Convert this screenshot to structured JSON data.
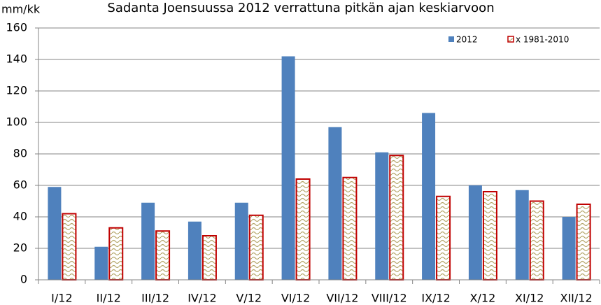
{
  "chart_data": {
    "type": "bar",
    "title": "Sadanta  Joensuussa 2012 verrattuna pitkän ajan keskiarvoon",
    "y_label": "mm/kk",
    "categories": [
      "I/12",
      "II/12",
      "III/12",
      "IV/12",
      "V/12",
      "VI/12",
      "VII/12",
      "VIII/12",
      "IX/12",
      "X/12",
      "XI/12",
      "XII/12"
    ],
    "series": [
      {
        "name": "2012",
        "color": "#4f81bd",
        "values": [
          59,
          21,
          49,
          37,
          49,
          142,
          97,
          81,
          106,
          60,
          57,
          40
        ]
      },
      {
        "name": "x 1981-2010",
        "color": "#c00000",
        "values": [
          42,
          33,
          31,
          28,
          41,
          64,
          65,
          79,
          53,
          56,
          50,
          48
        ]
      }
    ],
    "ylim": [
      0,
      160
    ],
    "yticks": [
      0,
      20,
      40,
      60,
      80,
      100,
      120,
      140,
      160
    ],
    "grid": true,
    "legend": "top-right"
  }
}
